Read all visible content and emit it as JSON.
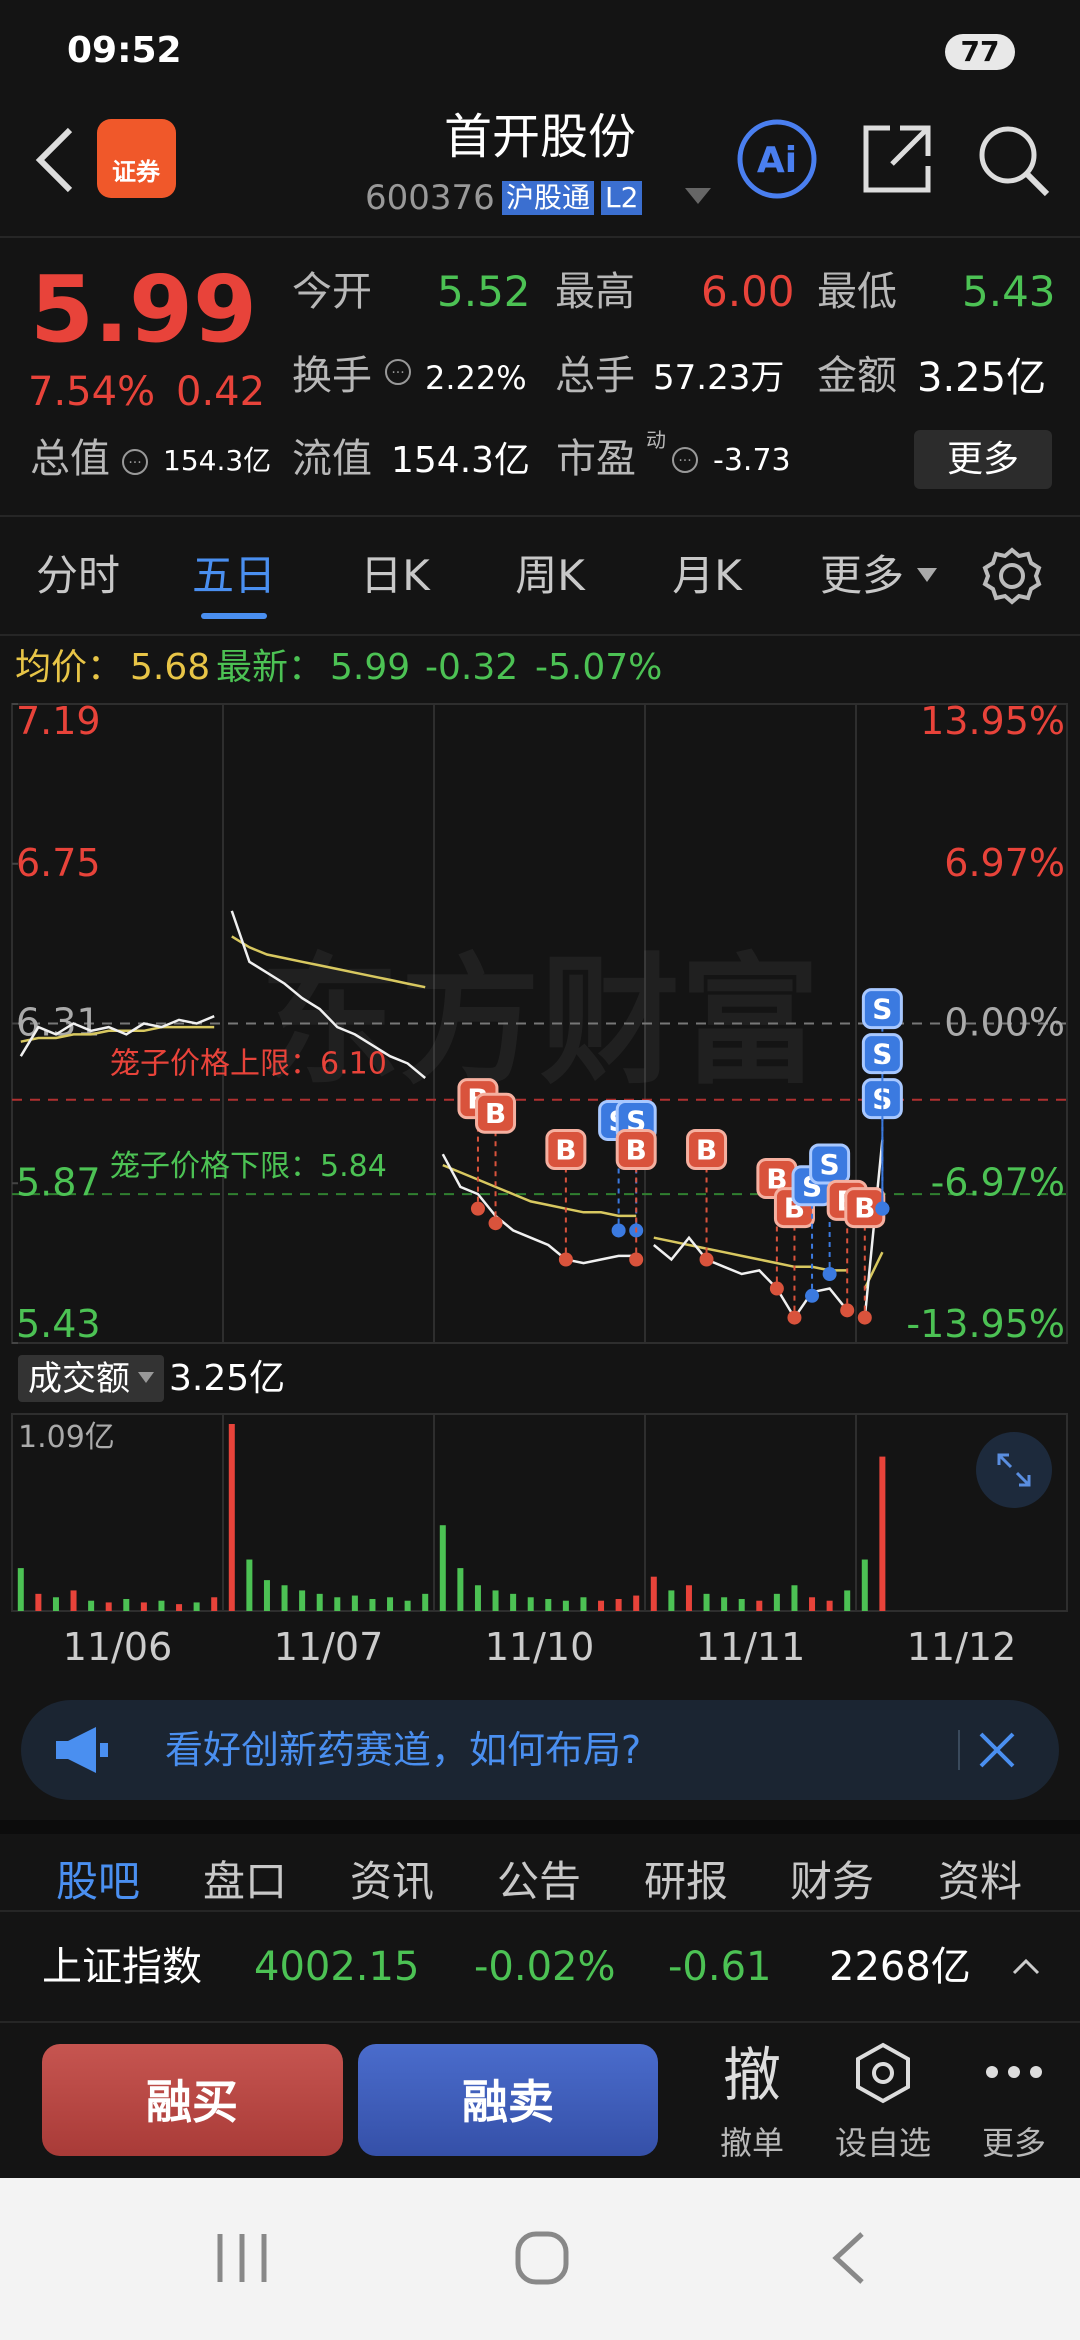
{
  "status_bar": {
    "time": "09:52",
    "battery": "77"
  },
  "header": {
    "app_icon": "证券",
    "title": "首开股份",
    "code": "600376",
    "tags": [
      "沪股通",
      "L2"
    ]
  },
  "quote": {
    "price": "5.99",
    "change_pct": "7.54%",
    "change": "0.42",
    "total_value": {
      "label": "总值",
      "value": "154.3亿"
    },
    "fields": [
      {
        "label": "今开",
        "value": "5.52",
        "color": "#4cc254"
      },
      {
        "label": "最高",
        "value": "6.00",
        "color": "#e8433a"
      },
      {
        "label": "最低",
        "value": "5.43",
        "color": "#4cc254"
      },
      {
        "label": "换手",
        "value": "2.22%",
        "color": "#ffffff"
      },
      {
        "label": "总手",
        "value": "57.23万",
        "color": "#ffffff"
      },
      {
        "label": "金额",
        "value": "3.25亿",
        "color": "#ffffff"
      },
      {
        "label": "流值",
        "value": "154.3亿",
        "color": "#ffffff"
      },
      {
        "label": "市盈",
        "value": "-3.73",
        "color": "#ffffff"
      }
    ],
    "pe_mark": "动",
    "more": "更多"
  },
  "tabs": {
    "items": [
      "分时",
      "五日",
      "日K",
      "周K",
      "月K",
      "更多"
    ],
    "active": 1
  },
  "info": {
    "avg_label": "均价：",
    "avg": "5.68",
    "last_label": "最新：",
    "last": "5.99",
    "change": "-0.32",
    "change_pct": "-5.07%"
  },
  "chart": {
    "watermark": "东方财富",
    "ylim": [
      5.43,
      7.19
    ],
    "yticks": [
      7.19,
      6.75,
      6.31,
      5.87,
      5.43
    ],
    "ytick_pct_labels": [
      "13.95%",
      "6.97%",
      "0.00%",
      "-6.97%",
      "-13.95%"
    ],
    "prev_close": 6.31,
    "cage_upper": {
      "label": "笼子价格上限：6.10",
      "value": 6.1
    },
    "cage_lower": {
      "label": "笼子价格下限：5.84",
      "value": 5.84
    },
    "dates": [
      "11/06",
      "11/07",
      "11/10",
      "11/11",
      "11/12"
    ],
    "price_color": "#f0f0f0",
    "avg_color": "#d8c860",
    "price_values": [
      6.22,
      6.3,
      6.28,
      6.31,
      6.29,
      6.3,
      6.28,
      6.31,
      6.3,
      6.32,
      6.31,
      6.33,
      6.62,
      6.48,
      6.45,
      6.42,
      6.38,
      6.35,
      6.3,
      6.28,
      6.25,
      6.22,
      6.2,
      6.16,
      5.95,
      5.86,
      5.84,
      5.78,
      5.74,
      5.72,
      5.7,
      5.66,
      5.65,
      5.66,
      5.67,
      5.67,
      5.7,
      5.66,
      5.72,
      5.66,
      5.64,
      5.62,
      5.63,
      5.58,
      5.5,
      5.57,
      5.58,
      5.52,
      5.5,
      5.99
    ],
    "avg_values": [
      6.26,
      6.27,
      6.27,
      6.28,
      6.28,
      6.29,
      6.29,
      6.29,
      6.3,
      6.3,
      6.3,
      6.3,
      6.55,
      6.52,
      6.5,
      6.49,
      6.48,
      6.47,
      6.46,
      6.45,
      6.44,
      6.43,
      6.42,
      6.41,
      5.92,
      5.9,
      5.88,
      5.86,
      5.84,
      5.82,
      5.81,
      5.8,
      5.79,
      5.79,
      5.78,
      5.78,
      5.72,
      5.71,
      5.7,
      5.69,
      5.68,
      5.67,
      5.66,
      5.65,
      5.64,
      5.64,
      5.63,
      5.63,
      5.58,
      5.68
    ],
    "markers": [
      {
        "label": "B",
        "index": 26,
        "price": 5.8
      },
      {
        "label": "B",
        "index": 27,
        "price": 5.76
      },
      {
        "label": "B",
        "index": 31,
        "price": 5.66
      },
      {
        "label": "S",
        "index": 34,
        "price": 5.74
      },
      {
        "label": "S",
        "index": 35,
        "price": 5.74
      },
      {
        "label": "B",
        "index": 35,
        "price": 5.66
      },
      {
        "label": "B",
        "index": 39,
        "price": 5.66
      },
      {
        "label": "B",
        "index": 43,
        "price": 5.58
      },
      {
        "label": "B",
        "index": 44,
        "price": 5.5
      },
      {
        "label": "S",
        "index": 45,
        "price": 5.56
      },
      {
        "label": "S",
        "index": 46,
        "price": 5.62
      },
      {
        "label": "B",
        "index": 47,
        "price": 5.52
      },
      {
        "label": "B",
        "index": 48,
        "price": 5.5
      },
      {
        "label": "S",
        "index": 49,
        "price": 5.8
      },
      {
        "label": "S",
        "index": 49,
        "price": 5.8
      },
      {
        "label": "S",
        "index": 49,
        "price": 5.8
      }
    ],
    "volume_selector": "成交额",
    "volume_total": "3.25亿",
    "volume_max": {
      "value": 1.09,
      "label": "1.09亿"
    },
    "volume_values": [
      0.25,
      0.1,
      0.08,
      0.12,
      0.06,
      0.05,
      0.07,
      0.05,
      0.06,
      0.04,
      0.05,
      0.08,
      1.09,
      0.3,
      0.18,
      0.15,
      0.12,
      0.1,
      0.08,
      0.09,
      0.07,
      0.08,
      0.06,
      0.1,
      0.5,
      0.25,
      0.15,
      0.12,
      0.1,
      0.08,
      0.07,
      0.06,
      0.08,
      0.06,
      0.07,
      0.09,
      0.2,
      0.12,
      0.15,
      0.1,
      0.08,
      0.07,
      0.06,
      0.1,
      0.15,
      0.08,
      0.06,
      0.12,
      0.3,
      0.9
    ]
  },
  "banner": {
    "text": "看好创新药赛道，如何布局?"
  },
  "bottom_tabs": {
    "items": [
      "股吧",
      "盘口",
      "资讯",
      "公告",
      "研报",
      "财务",
      "资料"
    ],
    "active": 0
  },
  "index_row": {
    "name": "上证指数",
    "value": "4002.15",
    "pct": "-0.02%",
    "change": "-0.61",
    "amount": "2268亿"
  },
  "actions": {
    "buy": "融买",
    "sell": "融卖",
    "cancel_icon": "撤",
    "cancel": "撤单",
    "watch": "设自选",
    "more": "更多"
  }
}
